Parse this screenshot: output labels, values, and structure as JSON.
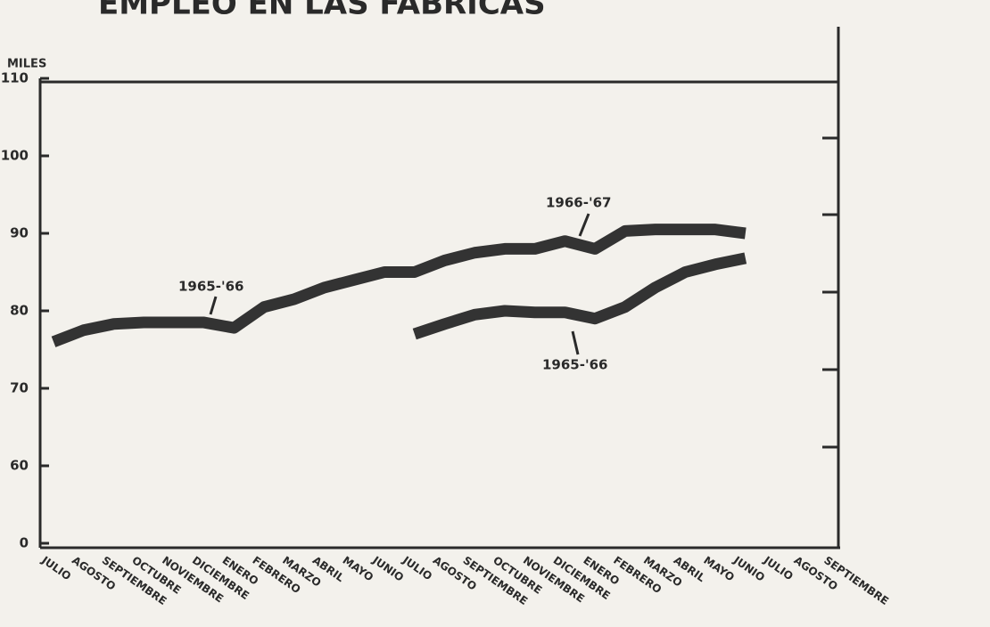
{
  "chart_data": {
    "type": "line",
    "title": "EMPLEO EN LAS FABRICAS",
    "y_label": "MILES",
    "categories": [
      "JULIO",
      "AGOSTO",
      "SEPTIEMBRE",
      "OCTUBRE",
      "NOVIEMBRE",
      "DICIEMBRE",
      "ENERO",
      "FEBRERO",
      "MARZO",
      "ABRIL",
      "MAYO",
      "JUNIO",
      "JULIO",
      "AGOSTO",
      "SEPTIEMBRE",
      "OCTUBRE",
      "NOVIEMBRE",
      "DICIEMBRE",
      "ENERO",
      "FEBRERO",
      "MARZO",
      "ABRIL",
      "MAYO",
      "JUNIO",
      "JULIO",
      "AGOSTO",
      "SEPTIEMBRE"
    ],
    "series": [
      {
        "color": "#333333",
        "values": [
          76,
          77.5,
          78.3,
          78.5,
          78.5,
          78.5,
          77.8,
          80.5,
          81.5,
          83,
          84,
          85,
          85,
          86.5,
          87.5,
          88,
          88,
          89,
          88,
          90.3,
          90.5,
          90.5,
          90.5,
          90,
          null,
          null,
          null
        ]
      },
      {
        "color": "#333333",
        "values": [
          null,
          null,
          null,
          null,
          null,
          null,
          null,
          null,
          null,
          null,
          null,
          null,
          77,
          78.3,
          79.5,
          80,
          79.8,
          79.8,
          79,
          80.5,
          83,
          85,
          86,
          86.8,
          null,
          null,
          null
        ]
      }
    ],
    "annotations": [
      "1965-'66",
      "1966-'67",
      "1965-'66"
    ],
    "ylim": [
      0,
      110
    ],
    "yticks": [
      0,
      60,
      70,
      80,
      90,
      100,
      110
    ],
    "y_break": true
  }
}
